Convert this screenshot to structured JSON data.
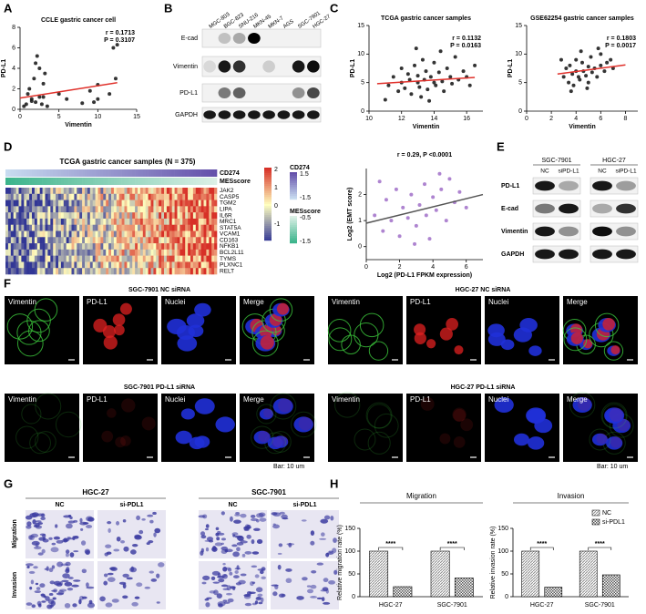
{
  "panel_labels": [
    "A",
    "B",
    "C",
    "D",
    "E",
    "F",
    "G",
    "H"
  ],
  "chart_data": [
    {
      "type": "scatter",
      "title": "CCLE gastric cancer cell",
      "x_label": "Vimentin",
      "y_label": "PD-L1",
      "xlim": [
        0,
        15
      ],
      "xticks": [
        0,
        5,
        10,
        15
      ],
      "ylim": [
        0,
        8
      ],
      "yticks": [
        0,
        2,
        4,
        6,
        8
      ],
      "annotations": [
        "r = 0.1713",
        "P = 0.3107"
      ],
      "color": "#111111",
      "fit_color": "#e0302a",
      "x": [
        0.5,
        1,
        1.2,
        1.5,
        1.8,
        2,
        2.2,
        2.5,
        2.5,
        2.8,
        3,
        3,
        0.8,
        1.5,
        2,
        3.5,
        5,
        6,
        8,
        9,
        9.5,
        10,
        10,
        11.5,
        12,
        12.3,
        12.5,
        3.2
      ],
      "y": [
        0.3,
        1.5,
        2,
        0.8,
        3,
        4.5,
        5.2,
        4,
        1.2,
        0.5,
        2.5,
        1.2,
        0.5,
        1,
        0.7,
        0.3,
        1.5,
        1,
        0.6,
        1.8,
        0.7,
        2.4,
        1,
        1.5,
        6,
        3,
        6.3,
        3.5
      ],
      "fit": {
        "x": [
          0,
          12.5
        ],
        "y": [
          1.1,
          2.6
        ]
      }
    },
    {
      "type": "scatter",
      "title": "TCGA gastric cancer samples",
      "x_label": "Vimentin",
      "y_label": "PD-L1",
      "xlim": [
        10,
        17
      ],
      "xticks": [
        10,
        12,
        14,
        16
      ],
      "ylim": [
        0,
        15
      ],
      "yticks": [
        0,
        5,
        10,
        15
      ],
      "annotations": [
        "r = 0.1132",
        "P = 0.0163"
      ],
      "color": "#111111",
      "fit_color": "#e0302a",
      "x": [
        11.2,
        11.5,
        11.8,
        12,
        12,
        12.2,
        12.4,
        12.5,
        12.6,
        12.8,
        13,
        13,
        13.1,
        13.3,
        13.4,
        13.5,
        13.6,
        13.8,
        14,
        14,
        14.1,
        14.3,
        14.5,
        14.6,
        14.8,
        15,
        15.1,
        15.3,
        15.5,
        15.8,
        16,
        16.2,
        16.5,
        11,
        13.2,
        14.4,
        12.9,
        13.7
      ],
      "y": [
        4.5,
        6,
        3.5,
        5,
        7.5,
        4,
        6.5,
        5.5,
        3,
        8,
        5,
        6.2,
        4.2,
        9,
        5.5,
        7,
        3.8,
        6,
        5,
        8.5,
        4.5,
        6.8,
        5.2,
        3.5,
        7.5,
        6,
        4.8,
        9.5,
        5.5,
        7,
        6,
        4.5,
        8,
        2,
        2.5,
        10.5,
        11,
        1.8
      ],
      "fit": {
        "x": [
          10.5,
          16.5
        ],
        "y": [
          4.8,
          5.9
        ]
      }
    },
    {
      "type": "scatter",
      "title": "GSE62254 gastric cancer samples",
      "x_label": "Vimentin",
      "y_label": "PD-L1",
      "xlim": [
        0,
        9
      ],
      "xticks": [
        0,
        2,
        4,
        6,
        8
      ],
      "ylim": [
        0,
        15
      ],
      "yticks": [
        0,
        5,
        10,
        15
      ],
      "annotations": [
        "r = 0.1803",
        "P = 0.0017"
      ],
      "color": "#111111",
      "fit_color": "#e0302a",
      "x": [
        3,
        3.2,
        3.4,
        3.5,
        3.7,
        3.8,
        4,
        4,
        4.2,
        4.3,
        4.5,
        4.6,
        4.8,
        5,
        5,
        5.2,
        5.3,
        5.5,
        5.7,
        6,
        6,
        6.3,
        6.5,
        7,
        2.8,
        4.4,
        3.6,
        5.8,
        4.9,
        6.8
      ],
      "y": [
        6,
        7.5,
        5,
        8,
        6.5,
        4.5,
        7,
        9,
        6,
        5.5,
        8.5,
        7,
        6.2,
        7.8,
        5,
        9.5,
        6.8,
        7.5,
        6,
        8,
        10,
        7,
        8.5,
        7.5,
        9,
        10.5,
        3.5,
        11,
        4,
        9
      ],
      "fit": {
        "x": [
          2.5,
          8
        ],
        "y": [
          6.5,
          8.1
        ]
      }
    },
    {
      "type": "scatter",
      "x_label": "Log2 (PD-L1 FPKM expression)",
      "y_label": "Log2 (EMT score)",
      "xlim": [
        0,
        7
      ],
      "xticks": [
        0,
        2,
        4,
        6
      ],
      "ylim": [
        -0.5,
        3
      ],
      "yticks": [
        0,
        1,
        2
      ],
      "annotations": [
        "r = 0.29, P <0.0001"
      ],
      "color": "#a06ec8",
      "fit_color": "#555555",
      "x": [
        0.5,
        1,
        1.2,
        1.5,
        1.8,
        2,
        2.2,
        2.5,
        2.7,
        3,
        3.2,
        3.5,
        3.6,
        3.8,
        4,
        4.2,
        4.5,
        4.8,
        5,
        5.3,
        5.6,
        6,
        0.8,
        2.9,
        4.4
      ],
      "y": [
        1.2,
        0.6,
        1.8,
        1,
        2.2,
        0.4,
        1.5,
        1.1,
        2,
        0.8,
        1.6,
        2.4,
        1.2,
        0.3,
        1.9,
        1.4,
        2.2,
        1,
        2.6,
        1.7,
        2.1,
        1.5,
        2.5,
        0.1,
        2.8
      ],
      "fit": {
        "x": [
          0,
          7
        ],
        "y": [
          0.9,
          2
        ]
      }
    },
    {
      "type": "bar",
      "categories": [
        "HGC-27",
        "SGC-7901"
      ],
      "ylim": [
        0,
        150
      ],
      "yticks": [
        0,
        50,
        100,
        150
      ],
      "series": [
        {
          "name": "NC",
          "color": "#8c8c8c"
        },
        {
          "name": "si-PDL1",
          "color": "#555555"
        }
      ],
      "panels": [
        {
          "title": "Migration",
          "y_label": "Relative migration rate (%)",
          "values": [
            [
              100,
              100
            ],
            [
              22,
              41
            ]
          ],
          "significance": [
            "****",
            "****"
          ]
        },
        {
          "title": "Invasion",
          "y_label": "Relative invasion rate (%)",
          "values": [
            [
              100,
              100
            ],
            [
              21,
              48
            ]
          ],
          "significance": [
            "****",
            "****"
          ]
        }
      ]
    }
  ],
  "blot_B": {
    "cell_lines": [
      "MGC-803",
      "BGC-823",
      "SNU-216",
      "MKN-45",
      "MKN-7",
      "AGS",
      "SGC-7901",
      "HGC-27"
    ],
    "rows": [
      "E-cad",
      "Vimentin",
      "PD-L1",
      "GAPDH"
    ]
  },
  "heatmap_D": {
    "title": "TCGA gastric cancer samples (N = 375)",
    "annotation_rows": [
      "CD274",
      "MESscore"
    ],
    "genes": [
      "JAK2",
      "CASP5",
      "TGM2",
      "LIPA",
      "IL6R",
      "MRC1",
      "STAT5A",
      "VCAM1",
      "CD163",
      "NFKB1",
      "BCL2L11",
      "TYMS",
      "PLXNC1",
      "RELT"
    ],
    "scale_labels": [
      "2",
      "1",
      "0",
      "-1"
    ],
    "cd274_legend": {
      "title": "CD274",
      "labels": [
        "1.5",
        "-1.5"
      ]
    },
    "messcore_legend": {
      "title": "MESscore",
      "labels": [
        "-0.5",
        "-1.5"
      ]
    }
  },
  "blot_E": {
    "groups": [
      "SGC-7901",
      "HGC-27"
    ],
    "lanes": [
      "NC",
      "siPD-L1"
    ],
    "rows": [
      "PD-L1",
      "E-cad",
      "Vimentin",
      "GAPDH"
    ]
  },
  "panel_F": {
    "titles": [
      "SGC-7901 NC siRNA",
      "SGC-7901 PD-L1 siRNA",
      "HGC-27 NC siRNA",
      "HGC-27 PD-L1 siRNA"
    ],
    "channels": [
      "Vimentin",
      "PD-L1",
      "Nuclei",
      "Merge"
    ],
    "scale_bar": "Bar:  10 um"
  },
  "panel_G": {
    "groups": [
      "HGC-27",
      "SGC-7901"
    ],
    "columns": [
      "NC",
      "si-PDL1"
    ],
    "rows": [
      "Migration",
      "Invasion"
    ]
  }
}
